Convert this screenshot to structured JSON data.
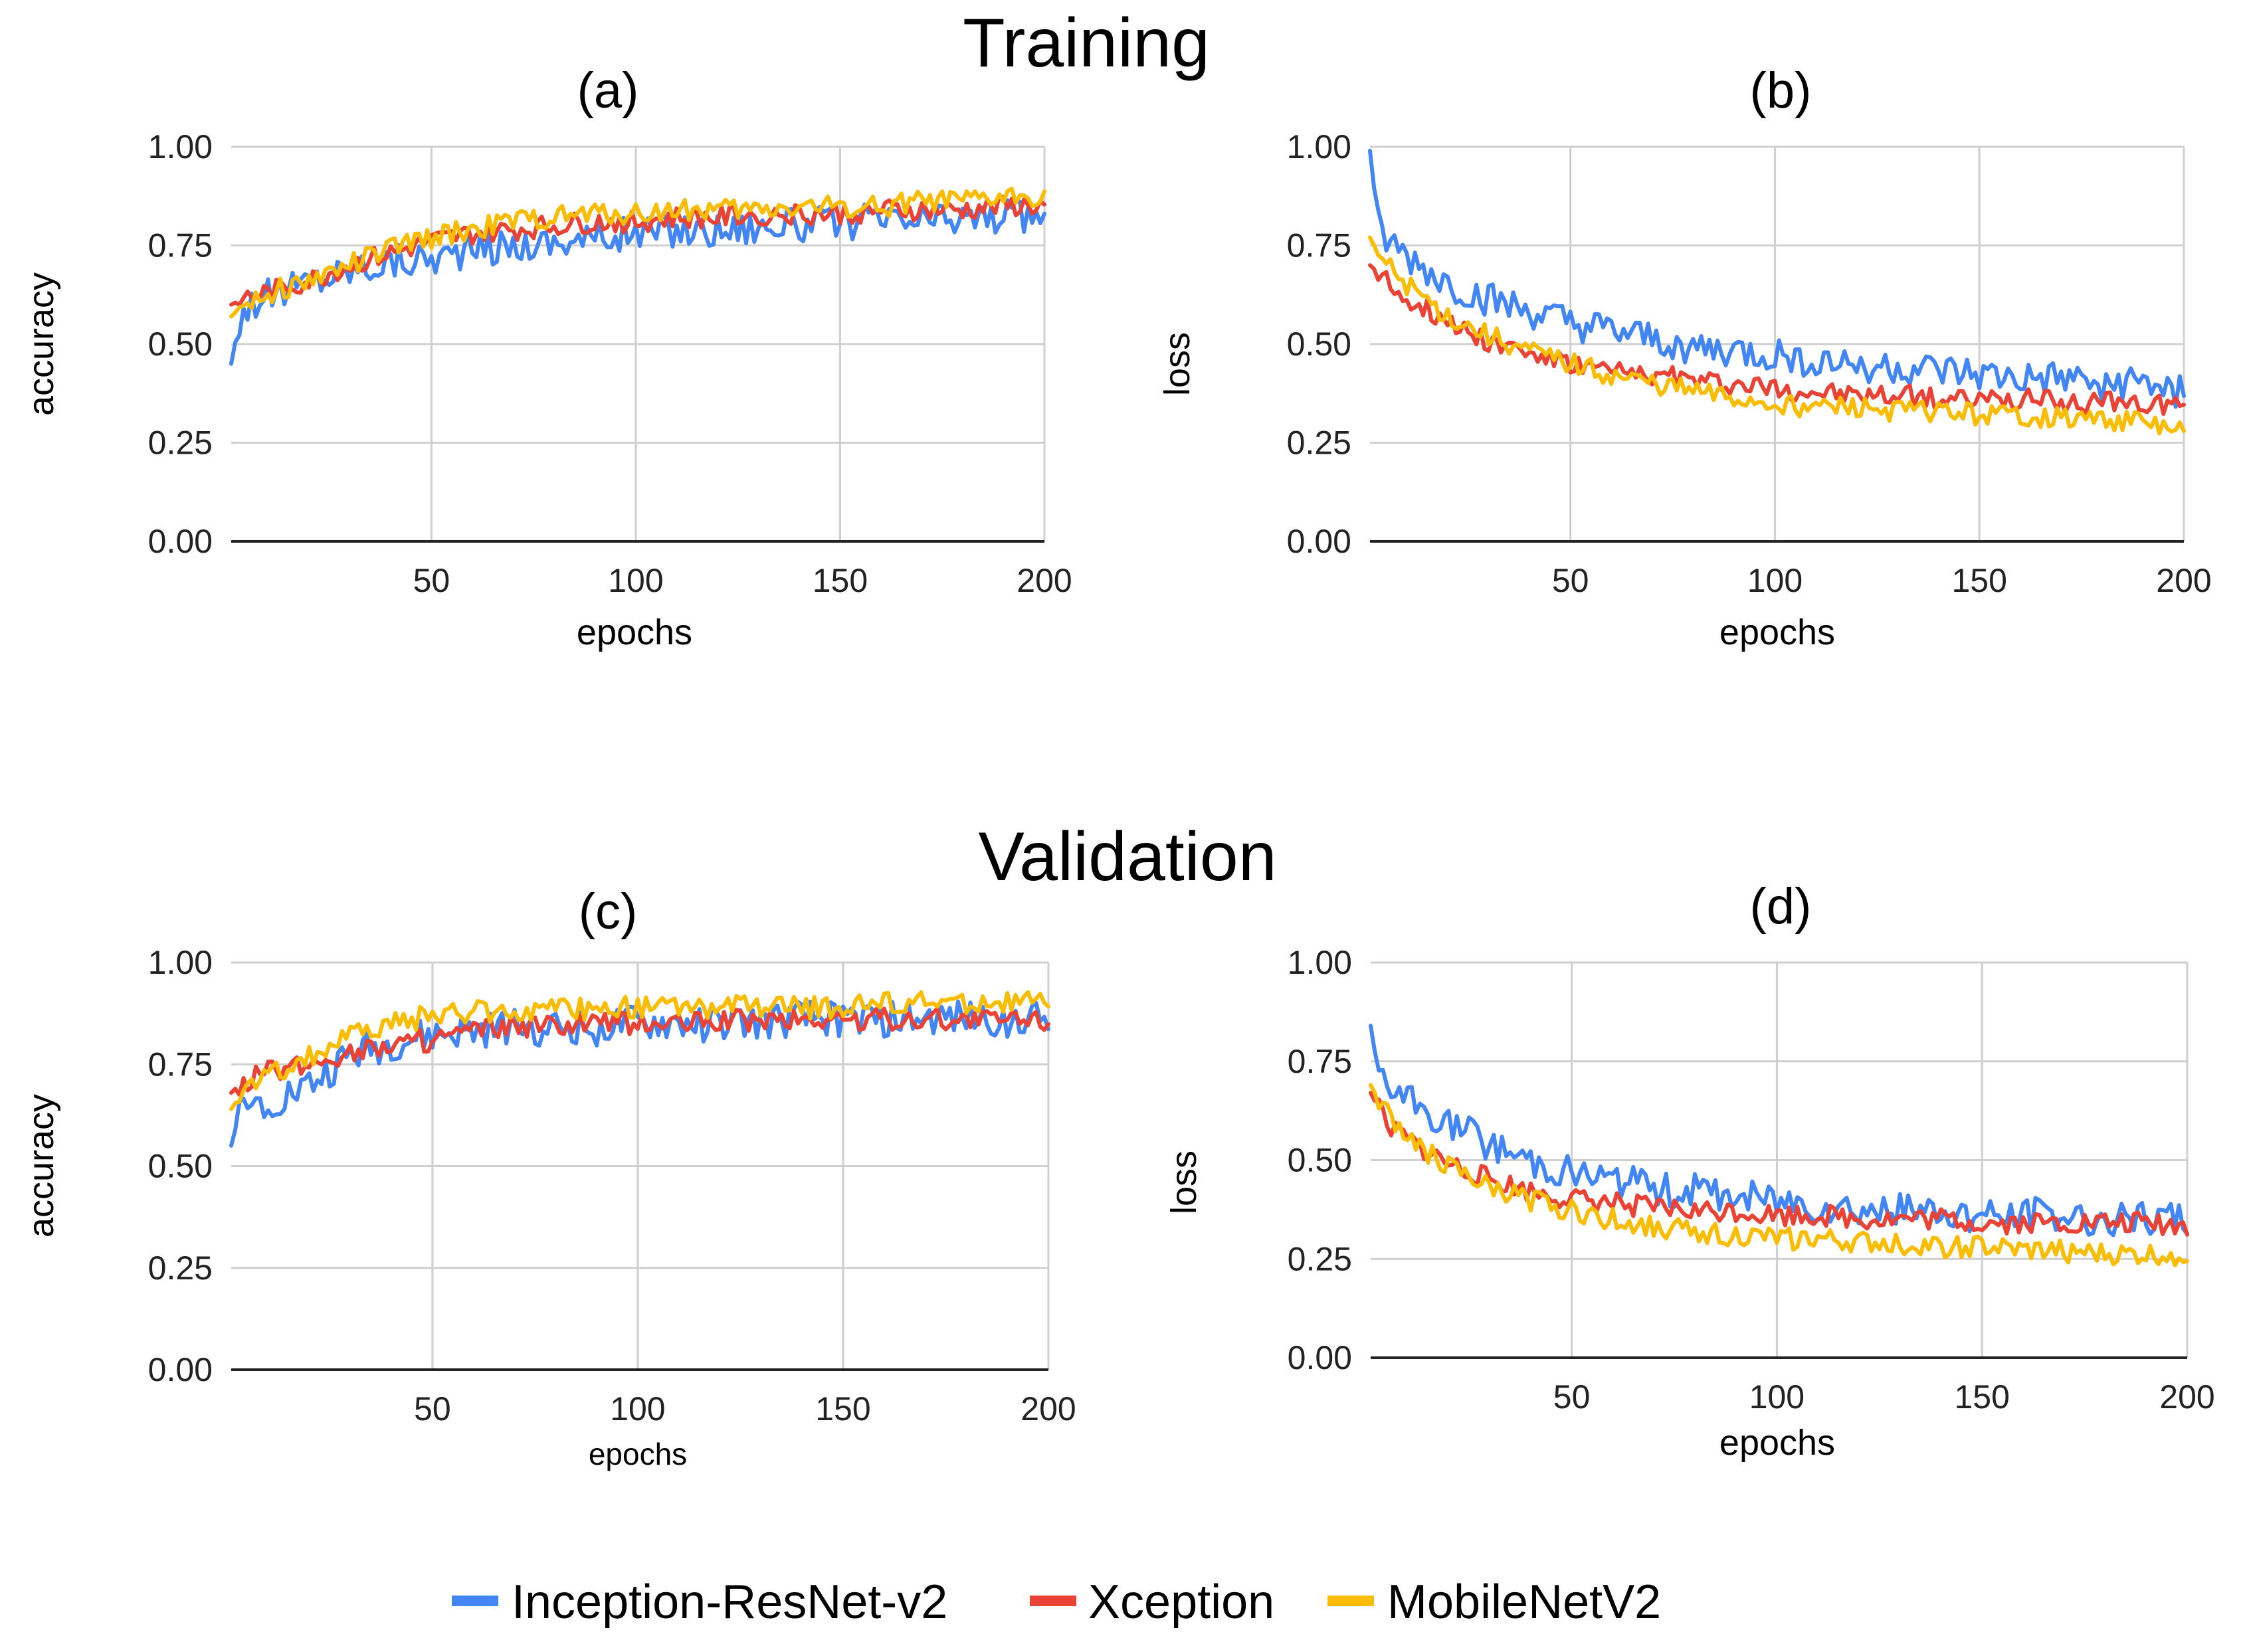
{
  "titles": {
    "training": "Training",
    "validation": "Validation"
  },
  "legend": [
    {
      "name": "Inception-ResNet-v2",
      "color": "#4285F4"
    },
    {
      "name": "Xception",
      "color": "#EA4335"
    },
    {
      "name": "MobileNetV2",
      "color": "#FBBC04"
    }
  ],
  "chart_data": [
    {
      "panel": "(a)",
      "section": "Training",
      "type": "line",
      "xlabel": "epochs",
      "ylabel": "accuracy",
      "xlim": [
        1,
        200
      ],
      "ylim": [
        0,
        1
      ],
      "xticks": [
        50,
        100,
        150,
        200
      ],
      "yticks": [
        "0.00",
        "0.25",
        "0.50",
        "0.75",
        "1.00"
      ],
      "series": [
        {
          "name": "Inception-ResNet-v2",
          "color": "#4285F4",
          "x": [
            1,
            3,
            5,
            10,
            20,
            30,
            40,
            50,
            60,
            70,
            80,
            90,
            100,
            110,
            120,
            130,
            140,
            150,
            160,
            170,
            180,
            190,
            200
          ],
          "y": [
            0.45,
            0.56,
            0.6,
            0.62,
            0.66,
            0.69,
            0.71,
            0.72,
            0.74,
            0.75,
            0.76,
            0.77,
            0.78,
            0.79,
            0.79,
            0.8,
            0.8,
            0.81,
            0.81,
            0.81,
            0.82,
            0.82,
            0.83
          ]
        },
        {
          "name": "Xception",
          "color": "#EA4335",
          "x": [
            1,
            3,
            5,
            10,
            20,
            30,
            40,
            50,
            60,
            70,
            80,
            90,
            100,
            110,
            120,
            130,
            140,
            150,
            160,
            170,
            180,
            190,
            200
          ],
          "y": [
            0.6,
            0.61,
            0.62,
            0.63,
            0.66,
            0.7,
            0.73,
            0.76,
            0.78,
            0.79,
            0.8,
            0.81,
            0.81,
            0.82,
            0.82,
            0.83,
            0.83,
            0.83,
            0.84,
            0.84,
            0.84,
            0.85,
            0.85
          ]
        },
        {
          "name": "MobileNetV2",
          "color": "#FBBC04",
          "x": [
            1,
            3,
            5,
            10,
            20,
            30,
            40,
            50,
            60,
            70,
            80,
            90,
            100,
            110,
            120,
            130,
            140,
            150,
            160,
            170,
            180,
            190,
            200
          ],
          "y": [
            0.57,
            0.59,
            0.61,
            0.63,
            0.66,
            0.7,
            0.74,
            0.77,
            0.79,
            0.81,
            0.82,
            0.83,
            0.83,
            0.84,
            0.84,
            0.84,
            0.85,
            0.85,
            0.85,
            0.86,
            0.86,
            0.87,
            0.88
          ]
        }
      ]
    },
    {
      "panel": "(b)",
      "section": "Training",
      "type": "line",
      "xlabel": "epochs",
      "ylabel": "loss",
      "xlim": [
        1,
        200
      ],
      "ylim": [
        0,
        1
      ],
      "xticks": [
        50,
        100,
        150,
        200
      ],
      "yticks": [
        "0.00",
        "0.25",
        "0.50",
        "0.75",
        "1.00"
      ],
      "series": [
        {
          "name": "Inception-ResNet-v2",
          "color": "#4285F4",
          "x": [
            1,
            3,
            5,
            10,
            20,
            30,
            40,
            50,
            60,
            70,
            80,
            90,
            100,
            110,
            120,
            130,
            140,
            150,
            160,
            170,
            180,
            190,
            200
          ],
          "y": [
            0.99,
            0.8,
            0.76,
            0.72,
            0.65,
            0.61,
            0.58,
            0.55,
            0.53,
            0.51,
            0.49,
            0.48,
            0.47,
            0.46,
            0.45,
            0.44,
            0.43,
            0.42,
            0.41,
            0.41,
            0.4,
            0.4,
            0.38
          ]
        },
        {
          "name": "Xception",
          "color": "#EA4335",
          "x": [
            1,
            3,
            5,
            10,
            20,
            30,
            40,
            50,
            60,
            70,
            80,
            90,
            100,
            110,
            120,
            130,
            140,
            150,
            160,
            170,
            180,
            190,
            200
          ],
          "y": [
            0.7,
            0.68,
            0.66,
            0.62,
            0.56,
            0.51,
            0.48,
            0.45,
            0.43,
            0.42,
            0.41,
            0.4,
            0.39,
            0.38,
            0.37,
            0.37,
            0.36,
            0.36,
            0.36,
            0.35,
            0.35,
            0.35,
            0.35
          ]
        },
        {
          "name": "MobileNetV2",
          "color": "#FBBC04",
          "x": [
            1,
            3,
            5,
            10,
            20,
            30,
            40,
            50,
            60,
            70,
            80,
            90,
            100,
            110,
            120,
            130,
            140,
            150,
            160,
            170,
            180,
            190,
            200
          ],
          "y": [
            0.77,
            0.73,
            0.7,
            0.65,
            0.57,
            0.52,
            0.48,
            0.45,
            0.42,
            0.4,
            0.38,
            0.36,
            0.35,
            0.34,
            0.34,
            0.33,
            0.33,
            0.32,
            0.32,
            0.31,
            0.31,
            0.3,
            0.28
          ]
        }
      ]
    },
    {
      "panel": "(c)",
      "section": "Validation",
      "type": "line",
      "xlabel": "epochs",
      "ylabel": "accuracy",
      "xlim": [
        1,
        200
      ],
      "ylim": [
        0,
        1
      ],
      "xticks": [
        50,
        100,
        150,
        200
      ],
      "yticks": [
        "0.00",
        "0.25",
        "0.50",
        "0.75",
        "1.00"
      ],
      "series": [
        {
          "name": "Inception-ResNet-v2",
          "color": "#4285F4",
          "x": [
            1,
            3,
            5,
            10,
            20,
            30,
            40,
            50,
            60,
            70,
            80,
            90,
            100,
            110,
            120,
            130,
            140,
            150,
            160,
            170,
            180,
            190,
            200
          ],
          "y": [
            0.55,
            0.63,
            0.65,
            0.66,
            0.7,
            0.77,
            0.8,
            0.82,
            0.83,
            0.84,
            0.84,
            0.84,
            0.85,
            0.85,
            0.85,
            0.85,
            0.86,
            0.86,
            0.86,
            0.86,
            0.86,
            0.86,
            0.86
          ]
        },
        {
          "name": "Xception",
          "color": "#EA4335",
          "x": [
            1,
            3,
            5,
            10,
            20,
            30,
            40,
            50,
            60,
            70,
            80,
            90,
            100,
            110,
            120,
            130,
            140,
            150,
            160,
            170,
            180,
            190,
            200
          ],
          "y": [
            0.68,
            0.7,
            0.71,
            0.73,
            0.75,
            0.78,
            0.8,
            0.81,
            0.83,
            0.84,
            0.84,
            0.85,
            0.85,
            0.85,
            0.86,
            0.86,
            0.86,
            0.86,
            0.86,
            0.86,
            0.86,
            0.86,
            0.86
          ]
        },
        {
          "name": "MobileNetV2",
          "color": "#FBBC04",
          "x": [
            1,
            3,
            5,
            10,
            20,
            30,
            40,
            50,
            60,
            70,
            80,
            90,
            100,
            110,
            120,
            130,
            140,
            150,
            160,
            170,
            180,
            190,
            200
          ],
          "y": [
            0.64,
            0.67,
            0.69,
            0.72,
            0.77,
            0.82,
            0.85,
            0.87,
            0.88,
            0.88,
            0.88,
            0.89,
            0.89,
            0.89,
            0.89,
            0.89,
            0.89,
            0.89,
            0.9,
            0.9,
            0.9,
            0.9,
            0.9
          ]
        }
      ]
    },
    {
      "panel": "(d)",
      "section": "Validation",
      "type": "line",
      "xlabel": "epochs",
      "ylabel": "loss",
      "xlim": [
        1,
        200
      ],
      "ylim": [
        0,
        1
      ],
      "xticks": [
        50,
        100,
        150,
        200
      ],
      "yticks": [
        "0.00",
        "0.25",
        "0.50",
        "0.75",
        "1.00"
      ],
      "series": [
        {
          "name": "Inception-ResNet-v2",
          "color": "#4285F4",
          "x": [
            1,
            3,
            5,
            10,
            20,
            30,
            40,
            50,
            60,
            70,
            80,
            90,
            100,
            110,
            120,
            130,
            140,
            150,
            160,
            170,
            180,
            190,
            200
          ],
          "y": [
            0.84,
            0.71,
            0.68,
            0.65,
            0.59,
            0.54,
            0.5,
            0.47,
            0.45,
            0.43,
            0.42,
            0.41,
            0.4,
            0.39,
            0.38,
            0.37,
            0.37,
            0.36,
            0.36,
            0.36,
            0.35,
            0.35,
            0.35
          ]
        },
        {
          "name": "Xception",
          "color": "#EA4335",
          "x": [
            1,
            3,
            5,
            10,
            20,
            30,
            40,
            50,
            60,
            70,
            80,
            90,
            100,
            110,
            120,
            130,
            140,
            150,
            160,
            170,
            180,
            190,
            200
          ],
          "y": [
            0.67,
            0.63,
            0.6,
            0.55,
            0.49,
            0.45,
            0.42,
            0.4,
            0.39,
            0.38,
            0.37,
            0.37,
            0.36,
            0.36,
            0.35,
            0.35,
            0.35,
            0.34,
            0.34,
            0.34,
            0.34,
            0.34,
            0.33
          ]
        },
        {
          "name": "MobileNetV2",
          "color": "#FBBC04",
          "x": [
            1,
            3,
            5,
            10,
            20,
            30,
            40,
            50,
            60,
            70,
            80,
            90,
            100,
            110,
            120,
            130,
            140,
            150,
            160,
            170,
            180,
            190,
            200
          ],
          "y": [
            0.69,
            0.65,
            0.62,
            0.56,
            0.48,
            0.43,
            0.4,
            0.37,
            0.35,
            0.33,
            0.32,
            0.31,
            0.3,
            0.3,
            0.29,
            0.29,
            0.28,
            0.28,
            0.27,
            0.27,
            0.26,
            0.26,
            0.26
          ]
        }
      ]
    }
  ]
}
